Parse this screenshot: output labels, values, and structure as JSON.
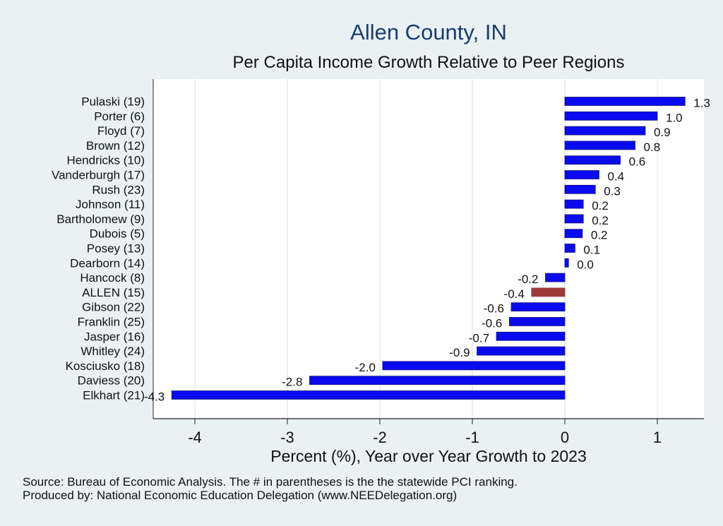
{
  "chart_data": {
    "type": "bar",
    "orientation": "horizontal",
    "title": "Allen County, IN",
    "subtitle": "Per Capita Income Growth Relative to Peer Regions",
    "xlabel": "Percent (%), Year over Year Growth to 2023",
    "ylabel": "",
    "xlim": [
      -4.45,
      1.5
    ],
    "x_ticks": [
      -4,
      -3,
      -2,
      -1,
      0,
      1
    ],
    "x_tick_labels": [
      "-4",
      "-3",
      "-2",
      "-1",
      "0",
      "1"
    ],
    "grid": "vertical",
    "categories": [
      "Pulaski (19)",
      "Porter  (6)",
      "Floyd  (7)",
      "Brown (12)",
      "Hendricks (10)",
      "Vanderburgh (17)",
      "Rush (23)",
      "Johnson (11)",
      "Bartholomew  (9)",
      "Dubois  (5)",
      "Posey (13)",
      "Dearborn (14)",
      "Hancock  (8)",
      "ALLEN (15)",
      "Gibson (22)",
      "Franklin (25)",
      "Jasper (16)",
      "Whitley (24)",
      "Kosciusko (18)",
      "Daviess (20)",
      "Elkhart (21)"
    ],
    "values": [
      1.3,
      1.0,
      0.87,
      0.76,
      0.6,
      0.37,
      0.33,
      0.2,
      0.2,
      0.19,
      0.11,
      0.04,
      -0.21,
      -0.36,
      -0.58,
      -0.6,
      -0.74,
      -0.95,
      -1.97,
      -2.76,
      -4.25
    ],
    "value_labels": [
      "1.3",
      "1.0",
      "0.9",
      "0.8",
      "0.6",
      "0.4",
      "0.3",
      "0.2",
      "0.2",
      "0.2",
      "0.1",
      "0.0",
      "-0.2",
      "-0.4",
      "-0.6",
      "-0.6",
      "-0.7",
      "-0.9",
      "-2.0",
      "-2.8",
      "-4.3"
    ],
    "highlight_category": "ALLEN (15)",
    "colors": {
      "bar": "#0a0af0",
      "bar_edge": "#1a1a7a",
      "highlight": "#9e3a3a",
      "plot_bg": "#ffffff",
      "page_bg": "#eaf1f3",
      "grid": "#e1ecef",
      "title": "#1a3d6e"
    }
  },
  "footnote": {
    "line1": "Source: Bureau of Economic Analysis. The # in parentheses is the the statewide PCI ranking.",
    "line2": "Produced by: National Economic Education Delegation (www.NEEDelegation.org)"
  }
}
